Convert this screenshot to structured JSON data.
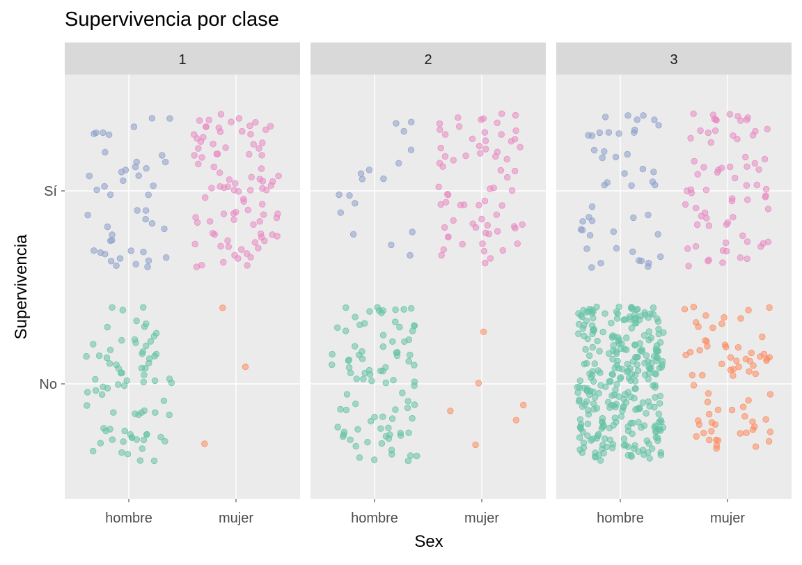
{
  "chart_data": {
    "type": "scatter",
    "title": "Supervivencia por clase",
    "xlabel": "Sex",
    "ylabel": "Supervivencia",
    "x_categories": [
      "hombre",
      "mujer"
    ],
    "y_categories": [
      "No",
      "Sí"
    ],
    "jitter": true,
    "grid": true,
    "legend": "none",
    "colors": {
      "hombre_No": "#66c2a5",
      "mujer_No": "#fc8d62",
      "hombre_Sí": "#8da0cb",
      "mujer_Sí": "#e78ac3"
    },
    "panels": [
      {
        "label": "1",
        "groups": [
          {
            "sex": "hombre",
            "survived": "No",
            "count": 77
          },
          {
            "sex": "mujer",
            "survived": "No",
            "count": 3
          },
          {
            "sex": "hombre",
            "survived": "Sí",
            "count": 45
          },
          {
            "sex": "mujer",
            "survived": "Sí",
            "count": 91
          }
        ]
      },
      {
        "label": "2",
        "groups": [
          {
            "sex": "hombre",
            "survived": "No",
            "count": 91
          },
          {
            "sex": "mujer",
            "survived": "No",
            "count": 6
          },
          {
            "sex": "hombre",
            "survived": "Sí",
            "count": 17
          },
          {
            "sex": "mujer",
            "survived": "Sí",
            "count": 70
          }
        ]
      },
      {
        "label": "3",
        "groups": [
          {
            "sex": "hombre",
            "survived": "No",
            "count": 300
          },
          {
            "sex": "mujer",
            "survived": "No",
            "count": 72
          },
          {
            "sex": "hombre",
            "survived": "Sí",
            "count": 47
          },
          {
            "sex": "mujer",
            "survived": "Sí",
            "count": 72
          }
        ]
      }
    ]
  }
}
